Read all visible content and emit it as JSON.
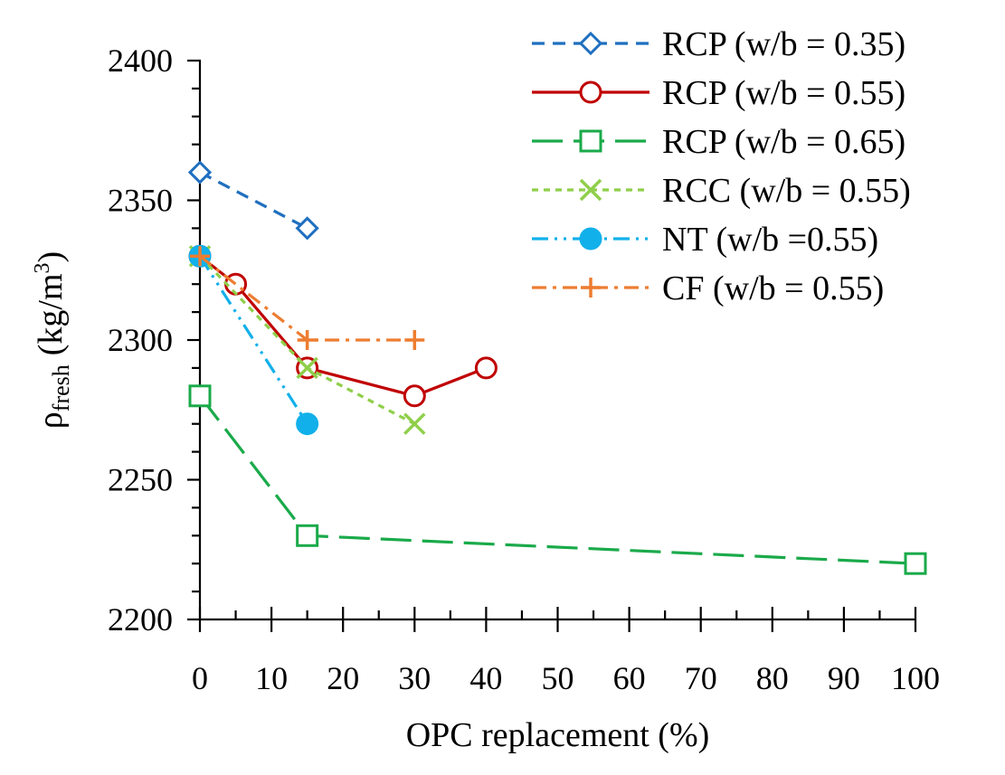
{
  "chart_data": {
    "type": "line",
    "xlabel": "OPC replacement (%)",
    "ylabel": {
      "rho": "ρ",
      "sub": "fresh",
      "unit": "(kg/m",
      "sup": "3",
      "close": ")"
    },
    "xlim": [
      0,
      100
    ],
    "ylim": [
      2200,
      2400
    ],
    "x_ticks": [
      0,
      10,
      20,
      30,
      40,
      50,
      60,
      70,
      80,
      90,
      100
    ],
    "y_ticks": [
      2200,
      2250,
      2300,
      2350,
      2400
    ],
    "legend_position": "top-right",
    "series": [
      {
        "name": "RCP (w/b = 0.35)",
        "color": "#1f6fbf",
        "dash": "dashed",
        "marker": "diamond-open",
        "x": [
          0,
          15
        ],
        "y": [
          2360,
          2340
        ]
      },
      {
        "name": "RCP (w/b = 0.55)",
        "color": "#c00000",
        "dash": "solid",
        "marker": "circle-open",
        "x": [
          0,
          5,
          15,
          30,
          40
        ],
        "y": [
          2330,
          2320,
          2290,
          2280,
          2290
        ]
      },
      {
        "name": "RCP (w/b = 0.65)",
        "color": "#1aaa4a",
        "dash": "longdash",
        "marker": "square-open",
        "x": [
          0,
          15,
          100
        ],
        "y": [
          2280,
          2230,
          2220
        ]
      },
      {
        "name": "RCC (w/b = 0.55)",
        "color": "#8fcf4a",
        "dash": "dotted",
        "marker": "x",
        "x": [
          0,
          15,
          30
        ],
        "y": [
          2330,
          2290,
          2270
        ]
      },
      {
        "name": "NT (w/b =0.55)",
        "color": "#12b0ea",
        "dash": "dashdotdot",
        "marker": "circle-filled",
        "x": [
          0,
          15
        ],
        "y": [
          2330,
          2270
        ]
      },
      {
        "name": "CF (w/b = 0.55)",
        "color": "#ed7d31",
        "dash": "dashdot",
        "marker": "plus",
        "x": [
          0,
          15,
          30
        ],
        "y": [
          2330,
          2300,
          2300
        ]
      }
    ]
  }
}
